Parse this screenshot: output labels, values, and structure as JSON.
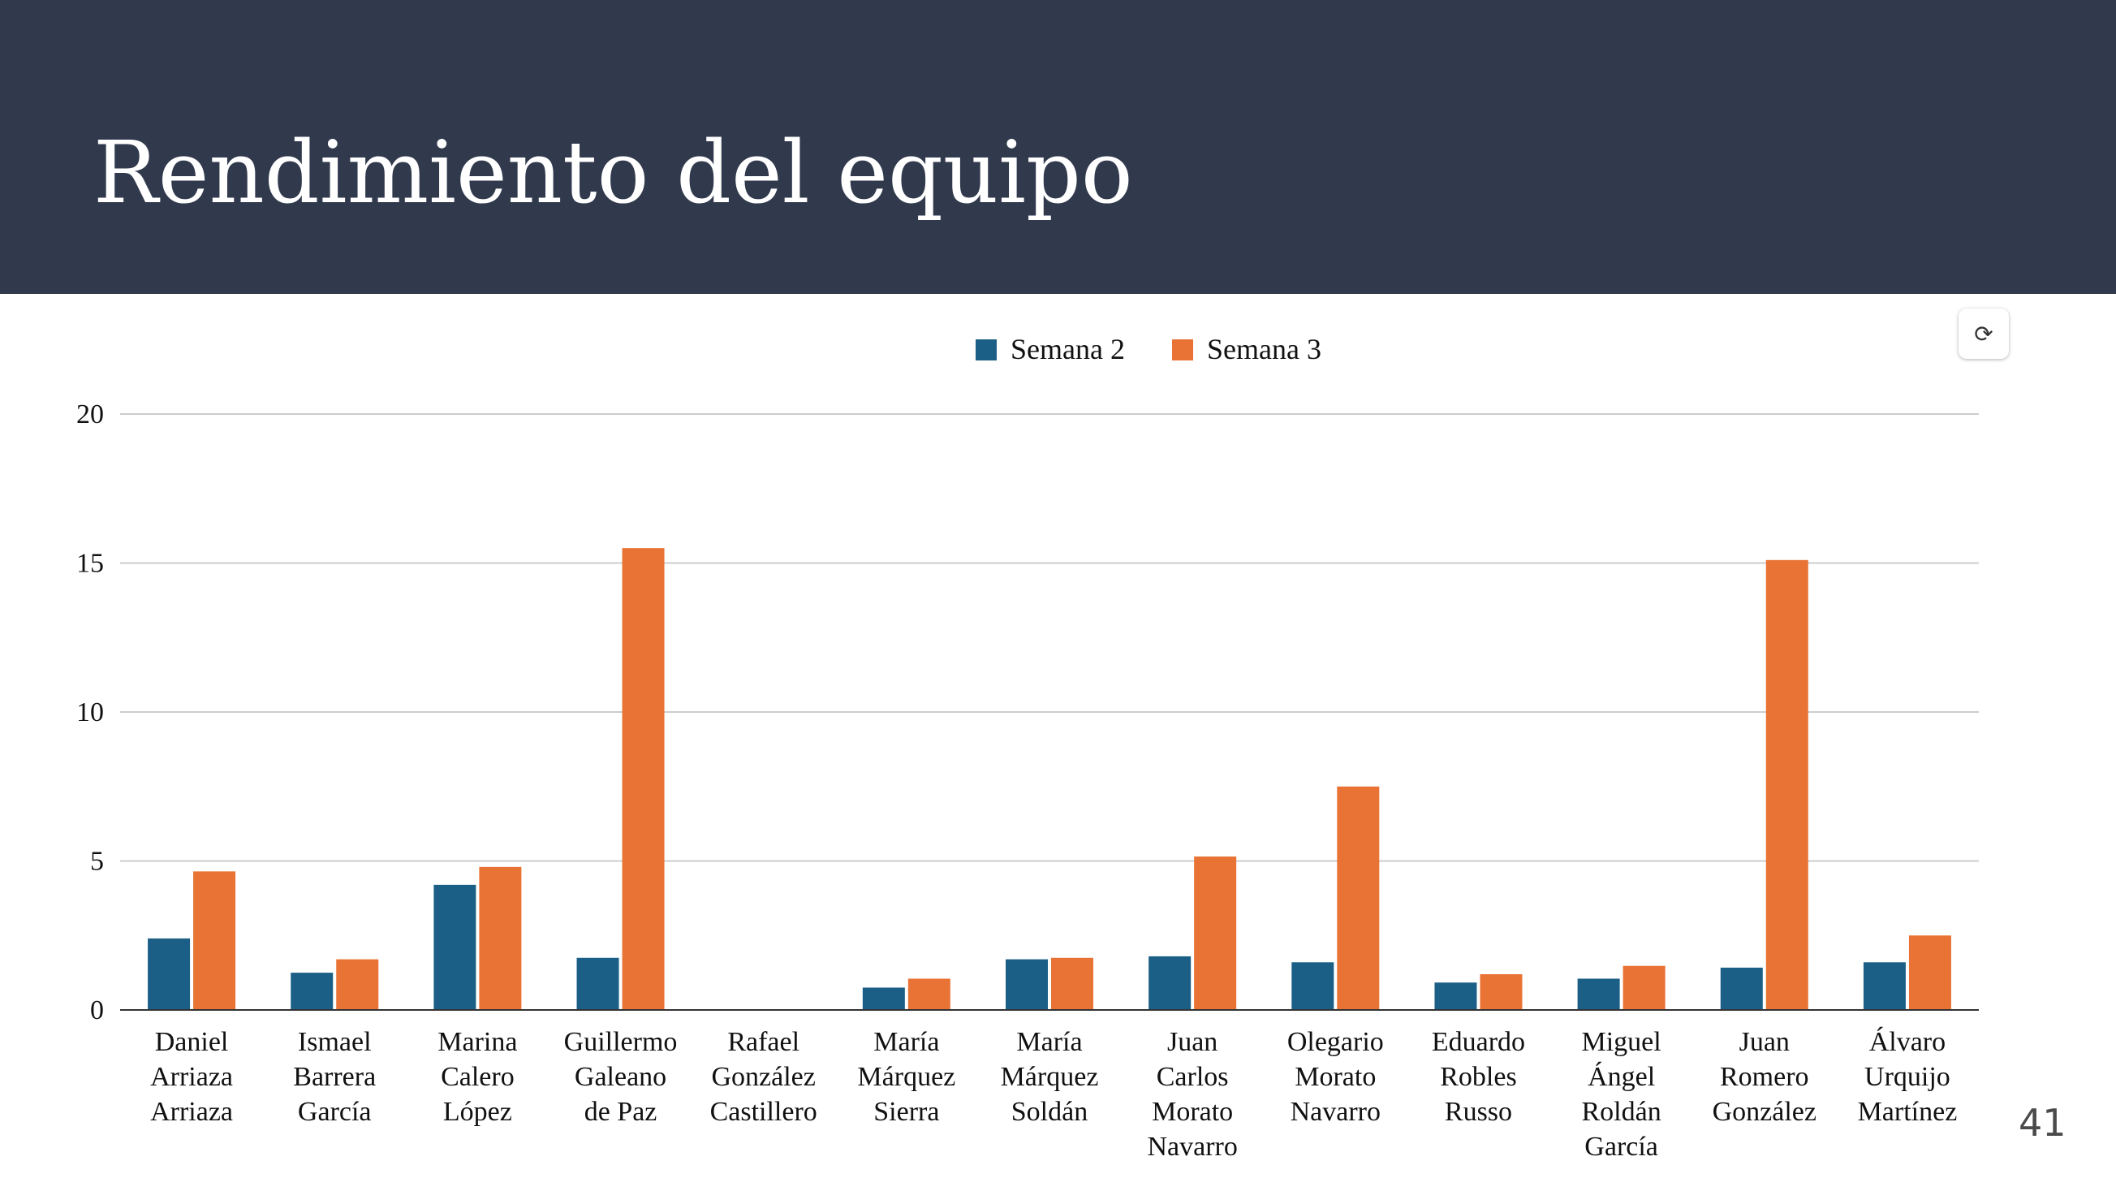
{
  "slide": {
    "title": "Rendimiento del equipo",
    "page_number": "41",
    "refresh_icon": "⟳"
  },
  "colors": {
    "header_bg": "#31394d",
    "series_1": "#1b5f86",
    "series_2": "#e97335",
    "grid": "#cccccc",
    "axis": "#333333"
  },
  "chart_data": {
    "type": "bar",
    "title": "",
    "xlabel": "",
    "ylabel": "",
    "ylim": [
      0,
      20
    ],
    "yticks": [
      0,
      5,
      10,
      15,
      20
    ],
    "grid": true,
    "legend_position": "top-center",
    "categories": [
      [
        "Daniel",
        "Arriaza",
        "Arriaza"
      ],
      [
        "Ismael",
        "Barrera",
        "García"
      ],
      [
        "Marina",
        "Calero",
        "López"
      ],
      [
        "Guillermo",
        "Galeano",
        "de Paz"
      ],
      [
        "Rafael",
        "González",
        "Castillero"
      ],
      [
        "María",
        "Márquez",
        "Sierra"
      ],
      [
        "María",
        "Márquez",
        "Soldán"
      ],
      [
        "Juan",
        "Carlos",
        "Morato",
        "Navarro"
      ],
      [
        "Olegario",
        "Morato",
        "Navarro"
      ],
      [
        "Eduardo",
        "Robles",
        "Russo"
      ],
      [
        "Miguel",
        "Ángel",
        "Roldán",
        "García"
      ],
      [
        "Juan",
        "Romero",
        "González"
      ],
      [
        "Álvaro",
        "Urquijo",
        "Martínez"
      ]
    ],
    "series": [
      {
        "name": "Semana 2",
        "color": "#1b5f86",
        "values": [
          2.4,
          1.25,
          4.2,
          1.75,
          0,
          0.75,
          1.7,
          1.8,
          1.6,
          0.92,
          1.05,
          1.42,
          1.6
        ]
      },
      {
        "name": "Semana 3",
        "color": "#e97335",
        "values": [
          4.65,
          1.7,
          4.8,
          15.5,
          0,
          1.05,
          1.75,
          5.15,
          7.5,
          1.2,
          1.48,
          15.1,
          2.5
        ]
      }
    ]
  }
}
